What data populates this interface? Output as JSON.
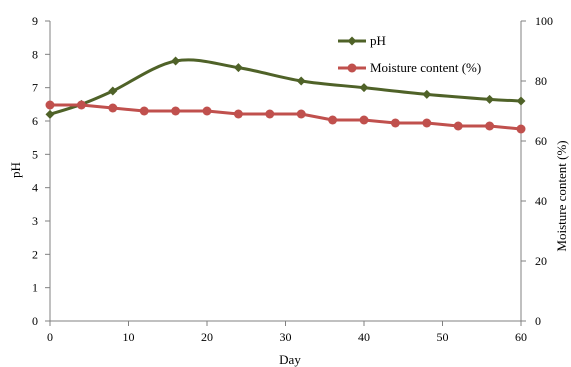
{
  "chart_data": {
    "type": "line",
    "title": "",
    "xlabel": "Day",
    "ylabel_left": "pH",
    "ylabel_right": "Moisture content (%)",
    "xlim": [
      0,
      60
    ],
    "ylim_left": [
      0,
      9
    ],
    "ylim_right": [
      0,
      100
    ],
    "xticks": [
      "0",
      "10",
      "20",
      "30",
      "40",
      "50",
      "60"
    ],
    "yticks_left": [
      "0",
      "1",
      "2",
      "3",
      "4",
      "5",
      "6",
      "7",
      "8",
      "9"
    ],
    "yticks_right": [
      "0",
      "20",
      "40",
      "60",
      "80",
      "100"
    ],
    "grid": false,
    "legend_position": "top-right",
    "series": [
      {
        "name": "pH",
        "axis": "left",
        "color": "#4f6228",
        "marker": "diamond",
        "smooth": true,
        "x": [
          0,
          4,
          8,
          16,
          24,
          32,
          40,
          48,
          56,
          60
        ],
        "y": [
          6.2,
          6.5,
          6.9,
          7.8,
          7.6,
          7.2,
          7.0,
          6.8,
          6.65,
          6.6
        ]
      },
      {
        "name": "Moisture content (%)",
        "axis": "right",
        "color": "#c0504d",
        "marker": "circle",
        "smooth": false,
        "x": [
          0,
          4,
          8,
          12,
          16,
          20,
          24,
          28,
          32,
          36,
          40,
          44,
          48,
          52,
          56,
          60
        ],
        "y": [
          72,
          72,
          71,
          70,
          70,
          70,
          69,
          69,
          69,
          67,
          67,
          66,
          66,
          65,
          65,
          64
        ]
      }
    ]
  }
}
